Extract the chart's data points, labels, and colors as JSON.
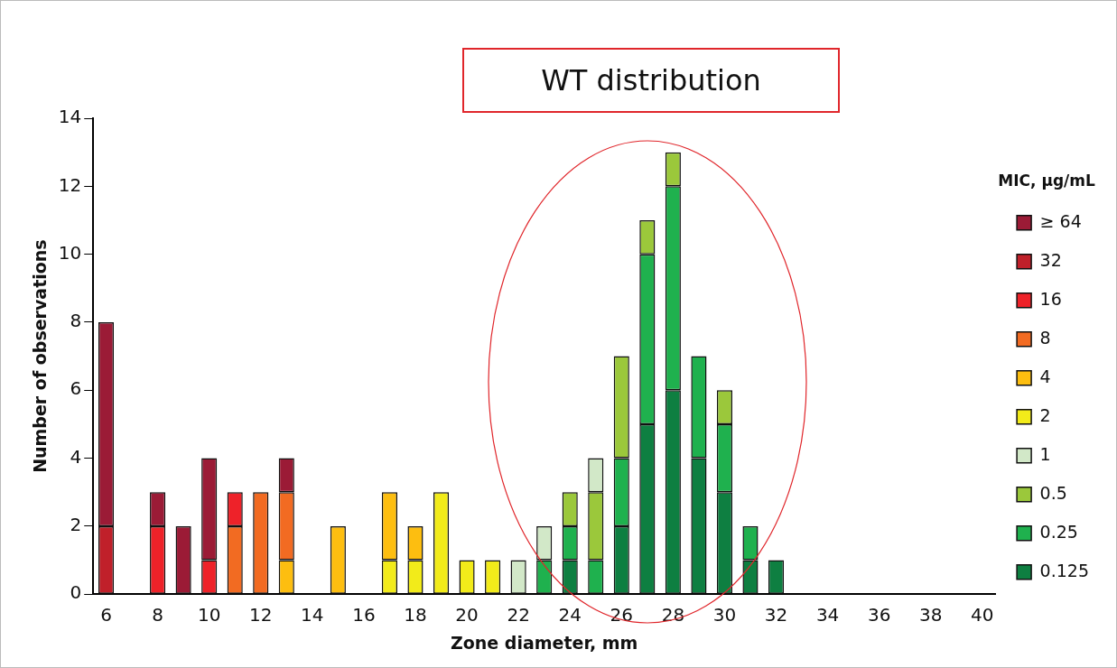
{
  "chart_data": {
    "type": "bar",
    "stacked": true,
    "xlabel": "Zone diameter, mm",
    "ylabel": "Number of observations",
    "legend_title": "MIC, µg/mL",
    "legend": "right",
    "annotations": [
      "WT distribution"
    ],
    "categories": [
      "6",
      null,
      "8",
      null,
      "10",
      null,
      "12",
      null,
      "14",
      null,
      "16",
      null,
      "18",
      null,
      "20",
      null,
      "22",
      null,
      "24",
      null,
      "26",
      null,
      "28",
      null,
      "30",
      null,
      "32",
      null,
      "34",
      null,
      "36",
      null,
      "38",
      null,
      "40"
    ],
    "ylim": [
      0,
      14
    ],
    "yticks": [
      0,
      2,
      4,
      6,
      8,
      10,
      12,
      14
    ],
    "grid": false,
    "series": [
      {
        "name": "0.125",
        "color": "#0e7f41",
        "values": [
          null,
          null,
          null,
          null,
          null,
          null,
          null,
          null,
          null,
          null,
          null,
          null,
          null,
          null,
          null,
          null,
          null,
          null,
          1,
          null,
          2,
          5,
          6,
          4,
          3,
          1,
          1,
          null,
          null,
          null,
          null,
          null,
          null,
          null,
          null
        ]
      },
      {
        "name": "0.25",
        "color": "#1fb14e",
        "values": [
          null,
          null,
          null,
          null,
          null,
          null,
          null,
          null,
          null,
          null,
          null,
          null,
          null,
          null,
          null,
          null,
          null,
          1,
          1,
          1,
          2,
          5,
          6,
          3,
          2,
          1,
          null,
          null,
          null,
          null,
          null,
          null,
          null,
          null,
          null
        ]
      },
      {
        "name": "0.5",
        "color": "#9bc83b",
        "values": [
          null,
          null,
          null,
          null,
          null,
          null,
          null,
          null,
          null,
          null,
          null,
          null,
          null,
          null,
          null,
          null,
          null,
          null,
          1,
          2,
          3,
          1,
          1,
          null,
          1,
          null,
          null,
          null,
          null,
          null,
          null,
          null,
          null,
          null,
          null
        ]
      },
      {
        "name": "1",
        "color": "#d2e8c8",
        "values": [
          null,
          null,
          null,
          null,
          null,
          null,
          null,
          null,
          null,
          null,
          null,
          null,
          null,
          null,
          null,
          null,
          1,
          1,
          null,
          1,
          null,
          null,
          null,
          null,
          null,
          null,
          null,
          null,
          null,
          null,
          null,
          null,
          null,
          null,
          null
        ]
      },
      {
        "name": "2",
        "color": "#f2eb1a",
        "values": [
          null,
          null,
          null,
          null,
          null,
          null,
          null,
          null,
          null,
          null,
          null,
          1,
          1,
          3,
          1,
          1,
          null,
          null,
          null,
          null,
          null,
          null,
          null,
          null,
          null,
          null,
          null,
          null,
          null,
          null,
          null,
          null,
          null,
          null,
          null
        ]
      },
      {
        "name": "4",
        "color": "#fdbe10",
        "values": [
          null,
          null,
          null,
          null,
          null,
          null,
          null,
          1,
          null,
          2,
          null,
          2,
          1,
          null,
          null,
          null,
          null,
          null,
          null,
          null,
          null,
          null,
          null,
          null,
          null,
          null,
          null,
          null,
          null,
          null,
          null,
          null,
          null,
          null,
          null
        ]
      },
      {
        "name": "8",
        "color": "#f26b22",
        "values": [
          null,
          null,
          null,
          null,
          null,
          2,
          3,
          2,
          null,
          null,
          null,
          null,
          null,
          null,
          null,
          null,
          null,
          null,
          null,
          null,
          null,
          null,
          null,
          null,
          null,
          null,
          null,
          null,
          null,
          null,
          null,
          null,
          null,
          null,
          null
        ]
      },
      {
        "name": "16",
        "color": "#ee2229",
        "values": [
          null,
          null,
          2,
          null,
          1,
          1,
          null,
          null,
          null,
          null,
          null,
          null,
          null,
          null,
          null,
          null,
          null,
          null,
          null,
          null,
          null,
          null,
          null,
          null,
          null,
          null,
          null,
          null,
          null,
          null,
          null,
          null,
          null,
          null,
          null
        ]
      },
      {
        "name": "32",
        "color": "#c0202a",
        "values": [
          2,
          null,
          null,
          null,
          null,
          null,
          null,
          null,
          null,
          null,
          null,
          null,
          null,
          null,
          null,
          null,
          null,
          null,
          null,
          null,
          null,
          null,
          null,
          null,
          null,
          null,
          null,
          null,
          null,
          null,
          null,
          null,
          null,
          null,
          null
        ]
      },
      {
        "name": "≥ 64",
        "color": "#9b1b36",
        "values": [
          6,
          null,
          1,
          2,
          3,
          null,
          null,
          1,
          null,
          null,
          null,
          null,
          null,
          null,
          null,
          null,
          null,
          null,
          null,
          null,
          null,
          null,
          null,
          null,
          null,
          null,
          null,
          null,
          null,
          null,
          null,
          null,
          null,
          null,
          null
        ]
      }
    ]
  }
}
